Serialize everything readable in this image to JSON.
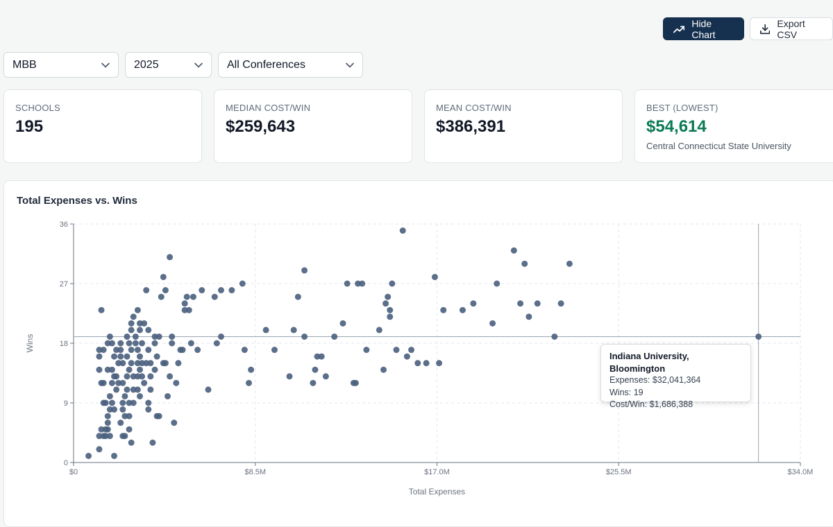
{
  "toolbar": {
    "hide_chart_label": "Hide Chart",
    "export_csv_label": "Export CSV"
  },
  "filters": {
    "sport": "MBB",
    "year": "2025",
    "conference": "All Conferences"
  },
  "stats": {
    "schools": {
      "label": "SCHOOLS",
      "value": "195"
    },
    "median": {
      "label": "MEDIAN COST/WIN",
      "value": "$259,643"
    },
    "mean": {
      "label": "MEAN COST/WIN",
      "value": "$386,391"
    },
    "best": {
      "label": "BEST (LOWEST)",
      "value": "$54,614",
      "school": "Central Connecticut State University"
    }
  },
  "colors": {
    "accent": "#16304f",
    "point": "#4a5f7d",
    "best": "#0b7a55"
  },
  "tooltip": {
    "title": "Indiana University, Bloomington",
    "expenses": "Expenses: $32,041,364",
    "wins": "Wins: 19",
    "cost_per_win": "Cost/Win: $1,686,388"
  },
  "chart_data": {
    "type": "scatter",
    "title": "Total Expenses vs. Wins",
    "xlabel": "Total Expenses",
    "ylabel": "Wins",
    "xlim": [
      0,
      34000000
    ],
    "ylim": [
      0,
      36
    ],
    "grid": true,
    "xticks": [
      {
        "value": 0,
        "label": "$0"
      },
      {
        "value": 8500000,
        "label": "$8.5M"
      },
      {
        "value": 17000000,
        "label": "$17.0M"
      },
      {
        "value": 25500000,
        "label": "$25.5M"
      },
      {
        "value": 34000000,
        "label": "$34.0M"
      }
    ],
    "yticks": [
      {
        "value": 0,
        "label": "0"
      },
      {
        "value": 9,
        "label": "9"
      },
      {
        "value": 18,
        "label": "18"
      },
      {
        "value": 27,
        "label": "27"
      },
      {
        "value": 36,
        "label": "36"
      }
    ],
    "highlight": {
      "x": 32041364,
      "y": 19
    },
    "points": [
      [
        0.7,
        1
      ],
      [
        1.2,
        2
      ],
      [
        1.9,
        1
      ],
      [
        1.2,
        4
      ],
      [
        1.4,
        4
      ],
      [
        1.5,
        4
      ],
      [
        1.5,
        5
      ],
      [
        1.6,
        5
      ],
      [
        1.7,
        4
      ],
      [
        1.3,
        5
      ],
      [
        1.6,
        6
      ],
      [
        1.6,
        7
      ],
      [
        1.7,
        8
      ],
      [
        1.9,
        8
      ],
      [
        1.8,
        9
      ],
      [
        1.5,
        9
      ],
      [
        1.4,
        9
      ],
      [
        1.3,
        12
      ],
      [
        1.4,
        12
      ],
      [
        1.2,
        14
      ],
      [
        1.2,
        16
      ],
      [
        1.2,
        17
      ],
      [
        1.4,
        17
      ],
      [
        1.3,
        23
      ],
      [
        1.6,
        14
      ],
      [
        1.6,
        18
      ],
      [
        1.7,
        19
      ],
      [
        1.8,
        18
      ],
      [
        1.9,
        16
      ],
      [
        2.0,
        17
      ],
      [
        1.9,
        13
      ],
      [
        1.8,
        12
      ],
      [
        1.7,
        10
      ],
      [
        1.8,
        14
      ],
      [
        2.0,
        13
      ],
      [
        2.0,
        11
      ],
      [
        2.1,
        15
      ],
      [
        2.1,
        12
      ],
      [
        2.2,
        16
      ],
      [
        2.2,
        17
      ],
      [
        2.2,
        18
      ],
      [
        2.3,
        15
      ],
      [
        2.3,
        12
      ],
      [
        2.3,
        9
      ],
      [
        2.3,
        8
      ],
      [
        2.2,
        6
      ],
      [
        2.3,
        4
      ],
      [
        2.4,
        4
      ],
      [
        2.4,
        7
      ],
      [
        2.4,
        10
      ],
      [
        2.5,
        11
      ],
      [
        2.5,
        13
      ],
      [
        2.5,
        16
      ],
      [
        2.6,
        14
      ],
      [
        2.5,
        19
      ],
      [
        2.6,
        18
      ],
      [
        2.7,
        20
      ],
      [
        2.7,
        21
      ],
      [
        2.7,
        17
      ],
      [
        2.7,
        15
      ],
      [
        2.8,
        13
      ],
      [
        2.8,
        11
      ],
      [
        2.8,
        9
      ],
      [
        2.6,
        9
      ],
      [
        2.6,
        7
      ],
      [
        2.6,
        5
      ],
      [
        2.7,
        3
      ],
      [
        2.8,
        22
      ],
      [
        2.9,
        19
      ],
      [
        3.0,
        17
      ],
      [
        3.0,
        15
      ],
      [
        3.0,
        13
      ],
      [
        3.0,
        11
      ],
      [
        3.1,
        10
      ],
      [
        3.1,
        14
      ],
      [
        3.1,
        16
      ],
      [
        3.1,
        20
      ],
      [
        3.1,
        21
      ],
      [
        3.2,
        18
      ],
      [
        3.0,
        23
      ],
      [
        2.9,
        18
      ],
      [
        3.2,
        15
      ],
      [
        3.2,
        13
      ],
      [
        3.3,
        12
      ],
      [
        3.3,
        21
      ],
      [
        3.4,
        15
      ],
      [
        3.4,
        26
      ],
      [
        3.5,
        20
      ],
      [
        3.5,
        17
      ],
      [
        3.6,
        13
      ],
      [
        3.6,
        11
      ],
      [
        3.5,
        9
      ],
      [
        3.5,
        8
      ],
      [
        3.6,
        15
      ],
      [
        3.7,
        3
      ],
      [
        3.8,
        18
      ],
      [
        3.8,
        19
      ],
      [
        3.8,
        14
      ],
      [
        3.9,
        16
      ],
      [
        3.9,
        7
      ],
      [
        4.0,
        7
      ],
      [
        4.0,
        19
      ],
      [
        4.1,
        25
      ],
      [
        4.2,
        28
      ],
      [
        4.2,
        15
      ],
      [
        4.3,
        15
      ],
      [
        4.3,
        26
      ],
      [
        4.4,
        10
      ],
      [
        4.5,
        13
      ],
      [
        4.5,
        31
      ],
      [
        4.6,
        18
      ],
      [
        4.6,
        19
      ],
      [
        4.7,
        6
      ],
      [
        4.8,
        12
      ],
      [
        4.9,
        15
      ],
      [
        5.0,
        17
      ],
      [
        5.1,
        17
      ],
      [
        5.2,
        24
      ],
      [
        5.2,
        23
      ],
      [
        5.3,
        25
      ],
      [
        5.4,
        23
      ],
      [
        5.5,
        18
      ],
      [
        5.6,
        25
      ],
      [
        5.8,
        17
      ],
      [
        6.0,
        26
      ],
      [
        6.3,
        11
      ],
      [
        6.6,
        25
      ],
      [
        6.7,
        18
      ],
      [
        6.9,
        19
      ],
      [
        6.9,
        26
      ],
      [
        7.4,
        26
      ],
      [
        7.9,
        27
      ],
      [
        8.0,
        17
      ],
      [
        8.2,
        12
      ],
      [
        8.3,
        14
      ],
      [
        9.0,
        20
      ],
      [
        9.4,
        17
      ],
      [
        10.1,
        13
      ],
      [
        10.3,
        20
      ],
      [
        10.5,
        25
      ],
      [
        10.8,
        29
      ],
      [
        10.8,
        19
      ],
      [
        11.2,
        12
      ],
      [
        11.3,
        14
      ],
      [
        11.4,
        16
      ],
      [
        11.6,
        16
      ],
      [
        11.8,
        13
      ],
      [
        12.2,
        19
      ],
      [
        12.6,
        21
      ],
      [
        12.8,
        27
      ],
      [
        13.1,
        12
      ],
      [
        13.2,
        12
      ],
      [
        13.3,
        27
      ],
      [
        13.5,
        27
      ],
      [
        13.7,
        17
      ],
      [
        14.3,
        20
      ],
      [
        14.5,
        14
      ],
      [
        14.6,
        24
      ],
      [
        14.7,
        25
      ],
      [
        14.8,
        22
      ],
      [
        14.8,
        23
      ],
      [
        14.9,
        27
      ],
      [
        15.1,
        17
      ],
      [
        15.4,
        35
      ],
      [
        15.6,
        16
      ],
      [
        15.8,
        17
      ],
      [
        16.1,
        15
      ],
      [
        16.5,
        15
      ],
      [
        16.9,
        28
      ],
      [
        17.1,
        15
      ],
      [
        17.3,
        23
      ],
      [
        18.2,
        23
      ],
      [
        18.7,
        24
      ],
      [
        19.6,
        21
      ],
      [
        19.8,
        27
      ],
      [
        20.6,
        32
      ],
      [
        20.9,
        24
      ],
      [
        21.1,
        30
      ],
      [
        21.3,
        22
      ],
      [
        21.7,
        24
      ],
      [
        22.5,
        19
      ],
      [
        22.8,
        24
      ],
      [
        23.2,
        30
      ],
      [
        32.04,
        19
      ]
    ]
  }
}
